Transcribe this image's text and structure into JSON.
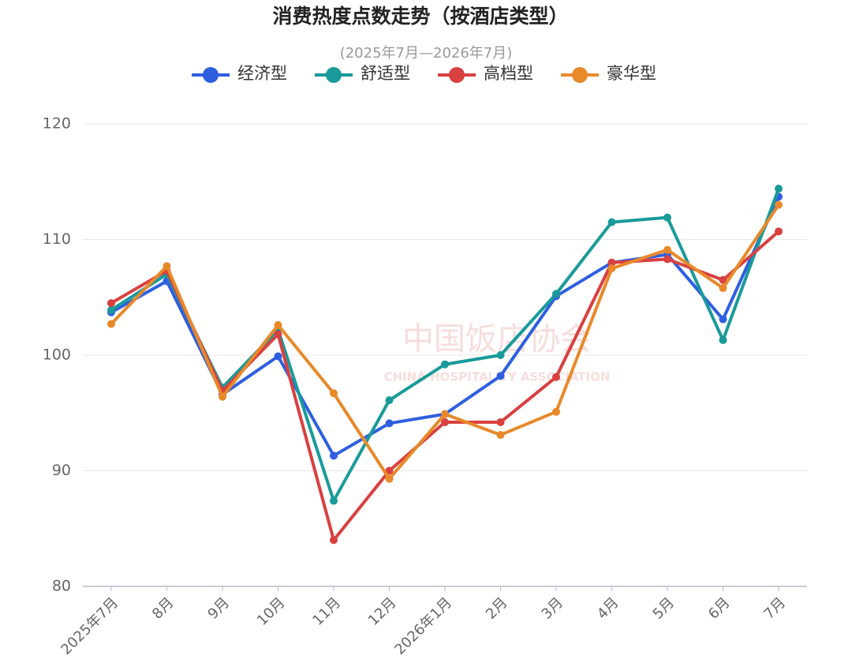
{
  "chart_data": {
    "type": "line",
    "title": "消费热度点数走势（按酒店类型）",
    "subtitle": "(2025年7月—2026年7月)",
    "watermark": [
      "中国饭店协会",
      "CHINA HOSPITALITY ASSOCIATION"
    ],
    "categories": [
      "2025年7月",
      "8月",
      "9月",
      "10月",
      "11月",
      "12月",
      "2026年1月",
      "2月",
      "3月",
      "4月",
      "5月",
      "6月",
      "7月"
    ],
    "series": [
      {
        "name": "经济型",
        "color": "#2f5fe0",
        "values": [
          103.7,
          106.4,
          96.6,
          99.9,
          91.3,
          94.1,
          94.9,
          98.2,
          105.1,
          108.0,
          108.7,
          103.1,
          113.7
        ]
      },
      {
        "name": "舒适型",
        "color": "#1a9a9a",
        "values": [
          103.9,
          107.0,
          97.2,
          102.2,
          87.4,
          96.1,
          99.2,
          100.0,
          105.3,
          111.5,
          111.9,
          101.3,
          114.4
        ]
      },
      {
        "name": "高档型",
        "color": "#d94040",
        "values": [
          104.5,
          107.3,
          96.9,
          101.8,
          84.0,
          90.0,
          94.2,
          94.2,
          98.1,
          108.0,
          108.3,
          106.5,
          110.7
        ]
      },
      {
        "name": "豪华型",
        "color": "#e8892a",
        "values": [
          102.7,
          107.7,
          96.4,
          102.6,
          96.7,
          89.3,
          94.9,
          93.1,
          95.1,
          107.5,
          109.1,
          105.8,
          113.0
        ]
      }
    ],
    "ylim": [
      80,
      120
    ],
    "yticks": [
      80,
      90,
      100,
      110,
      120
    ],
    "grid": true,
    "legend": "top"
  }
}
